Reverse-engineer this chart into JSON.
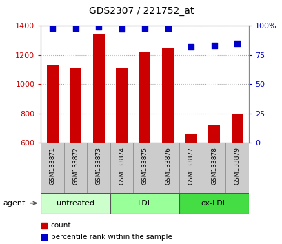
{
  "title": "GDS2307 / 221752_at",
  "samples": [
    "GSM133871",
    "GSM133872",
    "GSM133873",
    "GSM133874",
    "GSM133875",
    "GSM133876",
    "GSM133877",
    "GSM133878",
    "GSM133879"
  ],
  "counts": [
    1130,
    1110,
    1345,
    1110,
    1220,
    1250,
    660,
    720,
    795
  ],
  "percentiles": [
    98,
    98,
    99,
    97,
    98,
    98,
    82,
    83,
    85
  ],
  "ylim_left": [
    600,
    1400
  ],
  "ylim_right": [
    0,
    100
  ],
  "left_ticks": [
    600,
    800,
    1000,
    1200,
    1400
  ],
  "right_ticks": [
    0,
    25,
    50,
    75,
    100
  ],
  "right_tick_labels": [
    "0",
    "25",
    "50",
    "75",
    "100%"
  ],
  "bar_color": "#cc0000",
  "square_color": "#0000cc",
  "groups": [
    {
      "label": "untreated",
      "start": 0,
      "end": 3,
      "color": "#ccffcc"
    },
    {
      "label": "LDL",
      "start": 3,
      "end": 6,
      "color": "#99ff99"
    },
    {
      "label": "ox-LDL",
      "start": 6,
      "end": 9,
      "color": "#44dd44"
    }
  ],
  "agent_label": "agent",
  "legend_count_label": "count",
  "legend_percentile_label": "percentile rank within the sample",
  "grid_color": "#aaaaaa",
  "tick_label_color_left": "#cc0000",
  "tick_label_color_right": "#0000cc",
  "bar_width": 0.5,
  "square_size": 40,
  "label_box_color": "#cccccc",
  "label_box_edge": "#888888"
}
